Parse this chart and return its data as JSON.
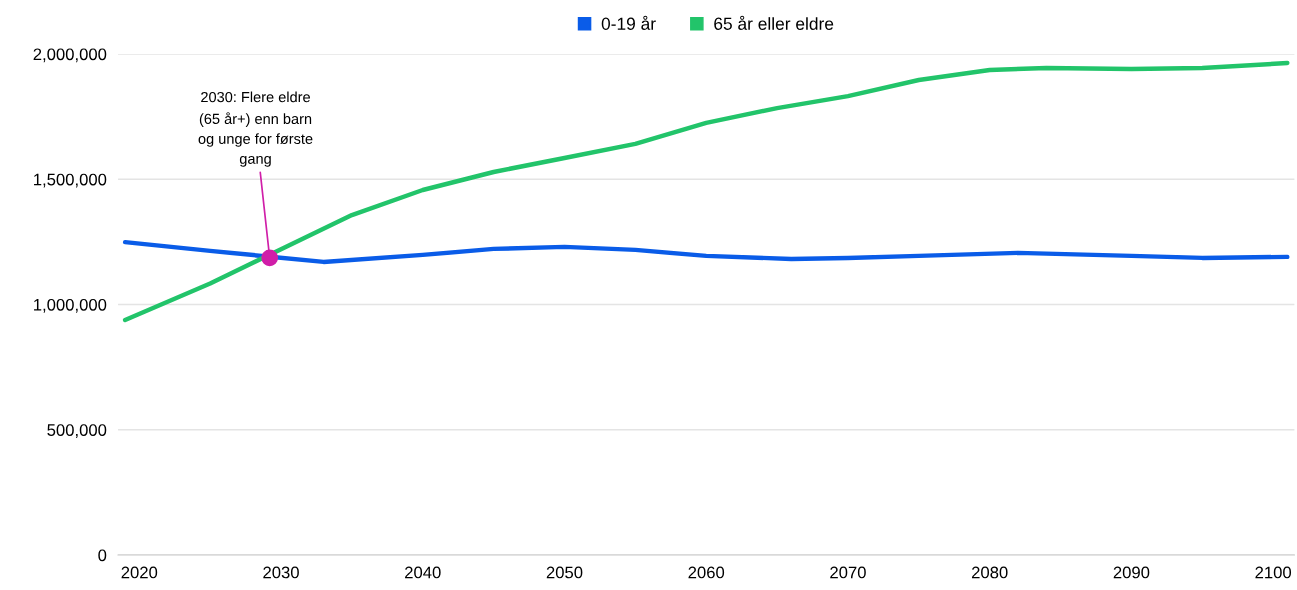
{
  "chart_data": {
    "type": "line",
    "legend": "top",
    "grid": "y",
    "marker": "none",
    "line_style": "solid",
    "xlim": [
      2018.5,
      2101.5
    ],
    "xticks": [
      2020,
      2030,
      2040,
      2050,
      2060,
      2070,
      2080,
      2090,
      2100
    ],
    "ylim": [
      0,
      2000000
    ],
    "yticks": [
      0,
      {
        "value": 500000,
        "label": "500,000"
      },
      {
        "value": 1000000,
        "label": "1,000,000"
      },
      {
        "value": 1500000,
        "label": "1,500,000"
      },
      {
        "value": 2000000,
        "label": "2,000,000"
      }
    ],
    "annotations": [
      {
        "text": "2030: Flere eldre\n(65 år+) enn barn\nog unge for første\ngang",
        "x": 2029.2,
        "y": 1186000
      }
    ],
    "series": [
      {
        "name": "0-19 år",
        "color": "#0a5ce8",
        "x": [
          2019,
          2025,
          2033,
          2040,
          2045,
          2050,
          2055,
          2060,
          2066,
          2070,
          2075,
          2082,
          2090,
          2095,
          2101
        ],
        "values": [
          1249000,
          1214000,
          1170000,
          1198000,
          1222000,
          1230000,
          1218000,
          1194000,
          1182000,
          1186000,
          1194000,
          1206000,
          1194000,
          1186000,
          1190000
        ]
      },
      {
        "name": "65 år eller eldre",
        "color": "#22c46a",
        "x": [
          2019,
          2025,
          2035,
          2040,
          2045,
          2050,
          2055,
          2060,
          2065,
          2070,
          2075,
          2080,
          2084,
          2090,
          2095,
          2101
        ],
        "values": [
          938000,
          1084000,
          1357000,
          1457000,
          1529000,
          1585000,
          1641000,
          1725000,
          1784000,
          1832000,
          1896000,
          1936000,
          1944000,
          1940000,
          1944000,
          1964000
        ]
      }
    ]
  }
}
